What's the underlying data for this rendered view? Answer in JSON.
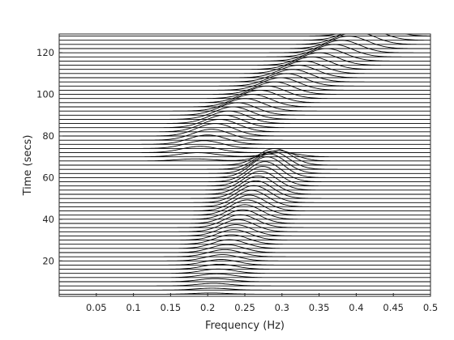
{
  "chart_data": {
    "type": "line",
    "title": "",
    "xlabel": "Frequency (Hz)",
    "ylabel": "Time (secs)",
    "xlim": [
      0,
      0.5
    ],
    "ylim": [
      3,
      129
    ],
    "grid": false,
    "legend": "none",
    "xticks": [
      0.05,
      0.1,
      0.15,
      0.2,
      0.25,
      0.3,
      0.35,
      0.4,
      0.45,
      0.5
    ],
    "xtick_labels": [
      "0.05",
      "0.1",
      "0.15",
      "0.2",
      "0.25",
      "0.3",
      "0.35",
      "0.4",
      "0.45",
      "0.5"
    ],
    "yticks": [
      20,
      40,
      60,
      80,
      100,
      120
    ],
    "ytick_labels": [
      "20",
      "40",
      "60",
      "80",
      "100",
      "120"
    ],
    "trace_times": [
      4,
      6,
      8,
      10,
      12,
      14,
      16,
      18,
      20,
      22,
      24,
      26,
      28,
      30,
      32,
      34,
      36,
      38,
      40,
      42,
      44,
      46,
      48,
      50,
      52,
      54,
      56,
      58,
      60,
      62,
      64,
      66,
      68,
      70,
      72,
      74,
      76,
      78,
      80,
      82,
      84,
      86,
      88,
      90,
      92,
      94,
      96,
      98,
      100,
      102,
      104,
      106,
      108,
      110,
      112,
      114,
      116,
      118,
      120,
      122,
      124,
      126,
      128
    ],
    "chirp_1": {
      "description_ref": "peak frequency rises while amplitude grows then fades",
      "time": [
        0,
        20,
        40,
        60,
        66,
        70
      ],
      "peak_frequency": [
        0.2,
        0.22,
        0.25,
        0.28,
        0.29,
        0.3
      ],
      "amplitude_secs": [
        0,
        3,
        7,
        10,
        8,
        2
      ]
    },
    "chirp_2": {
      "time": [
        66,
        72,
        80,
        90,
        100,
        110,
        120,
        128
      ],
      "peak_frequency": [
        0.18,
        0.19,
        0.21,
        0.24,
        0.29,
        0.33,
        0.38,
        0.42
      ],
      "amplitude_secs": [
        0,
        3,
        6,
        6,
        6,
        6,
        6,
        6
      ]
    },
    "line_color": "#000000",
    "axes_color": "#262626"
  }
}
